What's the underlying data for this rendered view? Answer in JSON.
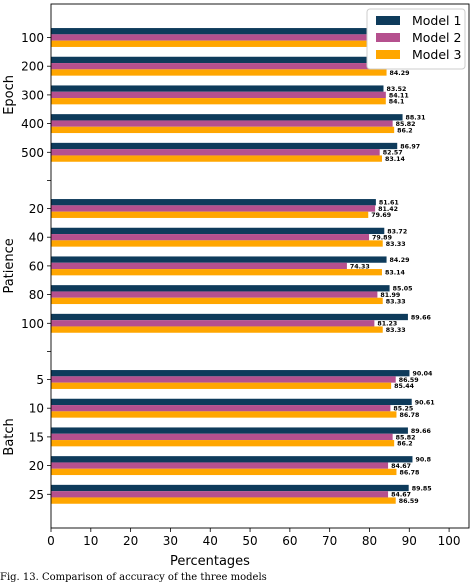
{
  "chart_data": {
    "type": "bar",
    "orientation": "horizontal",
    "xlabel": "Percentages",
    "xlim": [
      0,
      105
    ],
    "xticks": [
      0,
      10,
      20,
      30,
      40,
      50,
      60,
      70,
      80,
      90,
      100
    ],
    "grid": false,
    "legend_position": "top-right",
    "colors": {
      "Model 1": "#0e3b5b",
      "Model 2": "#b5508e",
      "Model 3": "#ffa600"
    },
    "groups": [
      {
        "name": "Epoch",
        "categories": [
          "100",
          "200",
          "300",
          "400",
          "500"
        ],
        "series": [
          {
            "name": "Model 1",
            "values": [
              82.18,
              84.29,
              83.52,
              88.31,
              86.97
            ]
          },
          {
            "name": "Model 2",
            "values": [
              82.76,
              84.1,
              84.11,
              85.82,
              82.57
            ]
          },
          {
            "name": "Model 3",
            "values": [
              80.65,
              84.29,
              84.1,
              86.2,
              83.14
            ]
          }
        ]
      },
      {
        "name": "Patience",
        "categories": [
          "20",
          "40",
          "60",
          "80",
          "100"
        ],
        "series": [
          {
            "name": "Model 1",
            "values": [
              81.61,
              83.72,
              84.29,
              85.05,
              89.66
            ]
          },
          {
            "name": "Model 2",
            "values": [
              81.42,
              79.89,
              74.33,
              81.99,
              81.23
            ]
          },
          {
            "name": "Model 3",
            "values": [
              79.69,
              83.33,
              83.14,
              83.33,
              83.33
            ]
          }
        ]
      },
      {
        "name": "Batch",
        "categories": [
          "5",
          "10",
          "15",
          "20",
          "25"
        ],
        "series": [
          {
            "name": "Model 1",
            "values": [
              90.04,
              90.61,
              89.66,
              90.8,
              89.85
            ]
          },
          {
            "name": "Model 2",
            "values": [
              86.59,
              85.25,
              85.82,
              84.67,
              84.67
            ]
          },
          {
            "name": "Model 3",
            "values": [
              85.44,
              86.78,
              86.2,
              86.78,
              86.59
            ]
          }
        ]
      }
    ]
  },
  "caption": "Fig. 13. Comparison of accuracy of the three models"
}
